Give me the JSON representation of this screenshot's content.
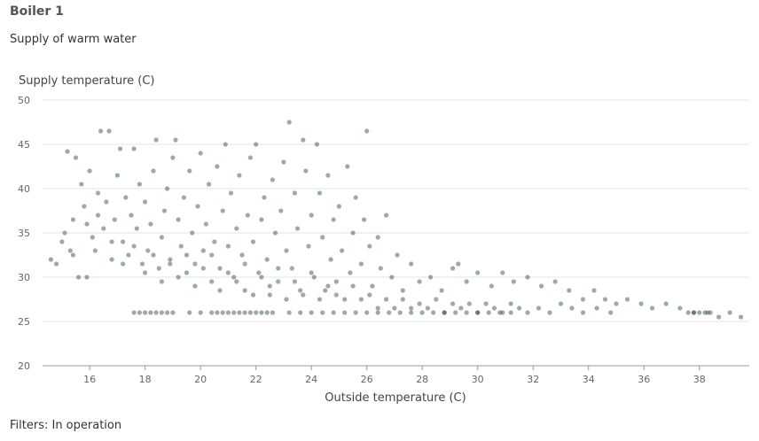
{
  "header": {
    "title": "Boiler 1",
    "subtitle": "Supply of warm water"
  },
  "footer": {
    "filters": "Filters: In operation"
  },
  "colors": {
    "point": "#2b3d47",
    "grid": "#e3e3e3",
    "axis": "#999999"
  },
  "chart_data": {
    "type": "scatter",
    "xlabel": "Outside temperature (C)",
    "ylabel": "Supply temperature (C)",
    "xlim": [
      14.3,
      39.8
    ],
    "ylim": [
      20,
      50
    ],
    "x_ticks": [
      16,
      18,
      20,
      22,
      24,
      26,
      28,
      30,
      32,
      34,
      36,
      38
    ],
    "y_ticks": [
      20,
      25,
      30,
      35,
      40,
      45,
      50
    ],
    "grid": "horizontal",
    "series": [
      {
        "points": [
          [
            14.6,
            32.0
          ],
          [
            14.8,
            31.5
          ],
          [
            15.0,
            34.0
          ],
          [
            15.1,
            35.0
          ],
          [
            15.2,
            44.2
          ],
          [
            15.3,
            33.0
          ],
          [
            15.4,
            36.5
          ],
          [
            15.5,
            43.5
          ],
          [
            15.6,
            30.0
          ],
          [
            15.7,
            40.5
          ],
          [
            15.8,
            38.0
          ],
          [
            15.9,
            36.0
          ],
          [
            16.0,
            42.0
          ],
          [
            16.1,
            34.5
          ],
          [
            16.2,
            33.0
          ],
          [
            16.3,
            39.5
          ],
          [
            16.4,
            46.5
          ],
          [
            16.5,
            35.5
          ],
          [
            16.6,
            38.5
          ],
          [
            16.7,
            46.5
          ],
          [
            16.8,
            32.0
          ],
          [
            16.9,
            36.5
          ],
          [
            17.0,
            41.5
          ],
          [
            17.1,
            44.5
          ],
          [
            17.2,
            34.0
          ],
          [
            17.3,
            39.0
          ],
          [
            17.4,
            32.5
          ],
          [
            17.5,
            37.0
          ],
          [
            17.6,
            44.5
          ],
          [
            17.7,
            35.5
          ],
          [
            17.8,
            40.5
          ],
          [
            17.9,
            31.5
          ],
          [
            18.0,
            38.5
          ],
          [
            18.1,
            33.0
          ],
          [
            18.2,
            36.0
          ],
          [
            18.3,
            42.0
          ],
          [
            18.4,
            45.5
          ],
          [
            18.5,
            31.0
          ],
          [
            18.6,
            34.5
          ],
          [
            18.7,
            37.5
          ],
          [
            18.8,
            40.0
          ],
          [
            18.9,
            32.0
          ],
          [
            19.0,
            43.5
          ],
          [
            19.1,
            45.5
          ],
          [
            19.2,
            36.5
          ],
          [
            19.3,
            33.5
          ],
          [
            19.4,
            39.0
          ],
          [
            19.5,
            30.5
          ],
          [
            19.6,
            42.0
          ],
          [
            19.7,
            35.0
          ],
          [
            19.8,
            31.5
          ],
          [
            19.9,
            38.0
          ],
          [
            20.0,
            44.0
          ],
          [
            20.1,
            33.0
          ],
          [
            20.2,
            36.0
          ],
          [
            20.3,
            40.5
          ],
          [
            20.4,
            29.5
          ],
          [
            20.5,
            34.0
          ],
          [
            20.6,
            42.5
          ],
          [
            20.7,
            31.0
          ],
          [
            20.8,
            37.5
          ],
          [
            20.9,
            45.0
          ],
          [
            21.0,
            33.5
          ],
          [
            21.1,
            39.5
          ],
          [
            21.2,
            30.0
          ],
          [
            21.3,
            35.5
          ],
          [
            21.4,
            41.5
          ],
          [
            21.5,
            32.5
          ],
          [
            21.6,
            28.5
          ],
          [
            21.7,
            37.0
          ],
          [
            21.8,
            43.5
          ],
          [
            21.9,
            34.0
          ],
          [
            22.0,
            45.0
          ],
          [
            22.1,
            30.5
          ],
          [
            22.2,
            36.5
          ],
          [
            22.3,
            39.0
          ],
          [
            22.4,
            32.0
          ],
          [
            22.5,
            28.0
          ],
          [
            22.6,
            41.0
          ],
          [
            22.7,
            35.0
          ],
          [
            22.8,
            29.5
          ],
          [
            22.9,
            37.5
          ],
          [
            23.0,
            43.0
          ],
          [
            23.1,
            33.0
          ],
          [
            23.2,
            47.5
          ],
          [
            23.3,
            31.0
          ],
          [
            23.4,
            39.5
          ],
          [
            23.5,
            35.5
          ],
          [
            23.6,
            28.5
          ],
          [
            23.7,
            45.5
          ],
          [
            23.8,
            42.0
          ],
          [
            23.9,
            33.5
          ],
          [
            24.0,
            37.0
          ],
          [
            24.1,
            30.0
          ],
          [
            24.2,
            45.0
          ],
          [
            24.3,
            39.5
          ],
          [
            24.4,
            34.5
          ],
          [
            24.5,
            28.5
          ],
          [
            24.6,
            41.5
          ],
          [
            24.7,
            32.0
          ],
          [
            24.8,
            36.5
          ],
          [
            24.9,
            29.5
          ],
          [
            25.0,
            38.0
          ],
          [
            25.1,
            33.0
          ],
          [
            25.3,
            42.5
          ],
          [
            25.4,
            30.5
          ],
          [
            25.5,
            35.0
          ],
          [
            25.6,
            39.0
          ],
          [
            25.8,
            31.5
          ],
          [
            25.9,
            36.5
          ],
          [
            26.0,
            46.5
          ],
          [
            26.1,
            33.5
          ],
          [
            26.2,
            29.0
          ],
          [
            26.4,
            34.5
          ],
          [
            26.5,
            31.0
          ],
          [
            26.7,
            37.0
          ],
          [
            26.9,
            30.0
          ],
          [
            27.1,
            32.5
          ],
          [
            27.3,
            28.5
          ],
          [
            27.6,
            31.5
          ],
          [
            27.9,
            29.5
          ],
          [
            28.3,
            30.0
          ],
          [
            28.7,
            28.5
          ],
          [
            29.1,
            31.0
          ],
          [
            29.3,
            31.5
          ],
          [
            29.6,
            29.5
          ],
          [
            30.0,
            30.5
          ],
          [
            30.5,
            29.0
          ],
          [
            30.9,
            30.5
          ],
          [
            31.3,
            29.5
          ],
          [
            31.8,
            30.0
          ],
          [
            32.3,
            29.0
          ],
          [
            32.8,
            29.5
          ],
          [
            33.3,
            28.5
          ],
          [
            33.8,
            27.5
          ],
          [
            34.2,
            28.5
          ],
          [
            34.6,
            27.5
          ],
          [
            35.0,
            27.0
          ],
          [
            35.4,
            27.5
          ],
          [
            35.9,
            27.0
          ],
          [
            36.3,
            26.5
          ],
          [
            36.8,
            27.0
          ],
          [
            37.3,
            26.5
          ],
          [
            37.8,
            26.0
          ],
          [
            38.3,
            26.0
          ],
          [
            38.7,
            25.5
          ],
          [
            39.1,
            26.0
          ],
          [
            39.5,
            25.5
          ],
          [
            15.4,
            32.5
          ],
          [
            15.9,
            30.0
          ],
          [
            16.3,
            37.0
          ],
          [
            16.8,
            34.0
          ],
          [
            17.2,
            31.5
          ],
          [
            17.6,
            33.5
          ],
          [
            18.0,
            30.5
          ],
          [
            18.3,
            32.5
          ],
          [
            18.6,
            29.5
          ],
          [
            18.9,
            31.5
          ],
          [
            19.2,
            30.0
          ],
          [
            19.5,
            32.5
          ],
          [
            19.8,
            29.0
          ],
          [
            20.1,
            31.0
          ],
          [
            20.4,
            32.5
          ],
          [
            20.7,
            28.5
          ],
          [
            21.0,
            30.5
          ],
          [
            21.3,
            29.5
          ],
          [
            21.6,
            31.5
          ],
          [
            21.9,
            28.0
          ],
          [
            22.2,
            30.0
          ],
          [
            22.5,
            29.0
          ],
          [
            22.8,
            31.0
          ],
          [
            23.1,
            27.5
          ],
          [
            23.4,
            29.5
          ],
          [
            23.7,
            28.0
          ],
          [
            24.0,
            30.5
          ],
          [
            24.3,
            27.5
          ],
          [
            24.6,
            29.0
          ],
          [
            24.9,
            28.0
          ],
          [
            25.2,
            27.5
          ],
          [
            25.5,
            29.0
          ],
          [
            25.8,
            27.5
          ],
          [
            26.1,
            28.0
          ],
          [
            26.4,
            26.5
          ],
          [
            26.7,
            27.5
          ],
          [
            27.0,
            26.5
          ],
          [
            27.3,
            27.5
          ],
          [
            27.6,
            26.5
          ],
          [
            27.9,
            27.0
          ],
          [
            28.2,
            26.5
          ],
          [
            28.5,
            27.5
          ],
          [
            28.8,
            26.0
          ],
          [
            29.1,
            27.0
          ],
          [
            29.4,
            26.5
          ],
          [
            29.7,
            27.0
          ],
          [
            30.0,
            26.0
          ],
          [
            30.3,
            27.0
          ],
          [
            30.6,
            26.5
          ],
          [
            30.9,
            26.0
          ],
          [
            31.2,
            27.0
          ],
          [
            31.5,
            26.5
          ],
          [
            31.8,
            26.0
          ],
          [
            32.2,
            26.5
          ],
          [
            32.6,
            26.0
          ],
          [
            33.0,
            27.0
          ],
          [
            33.4,
            26.5
          ],
          [
            33.8,
            26.0
          ],
          [
            34.3,
            26.5
          ],
          [
            34.8,
            26.0
          ],
          [
            17.6,
            26.0
          ],
          [
            17.8,
            26.0
          ],
          [
            18.0,
            26.0
          ],
          [
            18.2,
            26.0
          ],
          [
            18.4,
            26.0
          ],
          [
            18.6,
            26.0
          ],
          [
            18.8,
            26.0
          ],
          [
            19.0,
            26.0
          ],
          [
            19.6,
            26.0
          ],
          [
            20.0,
            26.0
          ],
          [
            20.4,
            26.0
          ],
          [
            20.6,
            26.0
          ],
          [
            20.8,
            26.0
          ],
          [
            21.0,
            26.0
          ],
          [
            21.2,
            26.0
          ],
          [
            21.4,
            26.0
          ],
          [
            21.6,
            26.0
          ],
          [
            21.8,
            26.0
          ],
          [
            22.0,
            26.0
          ],
          [
            22.2,
            26.0
          ],
          [
            22.4,
            26.0
          ],
          [
            22.6,
            26.0
          ],
          [
            23.2,
            26.0
          ],
          [
            23.6,
            26.0
          ],
          [
            24.0,
            26.0
          ],
          [
            24.4,
            26.0
          ],
          [
            24.8,
            26.0
          ],
          [
            25.2,
            26.0
          ],
          [
            25.6,
            26.0
          ],
          [
            26.0,
            26.0
          ],
          [
            26.4,
            26.0
          ],
          [
            26.8,
            26.0
          ],
          [
            27.2,
            26.0
          ],
          [
            27.6,
            26.0
          ],
          [
            28.0,
            26.0
          ],
          [
            28.4,
            26.0
          ],
          [
            28.8,
            26.0
          ],
          [
            29.2,
            26.0
          ],
          [
            29.6,
            26.0
          ],
          [
            30.0,
            26.0
          ],
          [
            30.4,
            26.0
          ],
          [
            30.8,
            26.0
          ],
          [
            31.2,
            26.0
          ],
          [
            37.6,
            26.0
          ],
          [
            37.8,
            26.0
          ],
          [
            38.0,
            26.0
          ],
          [
            38.2,
            26.0
          ],
          [
            38.4,
            26.0
          ]
        ]
      }
    ]
  }
}
